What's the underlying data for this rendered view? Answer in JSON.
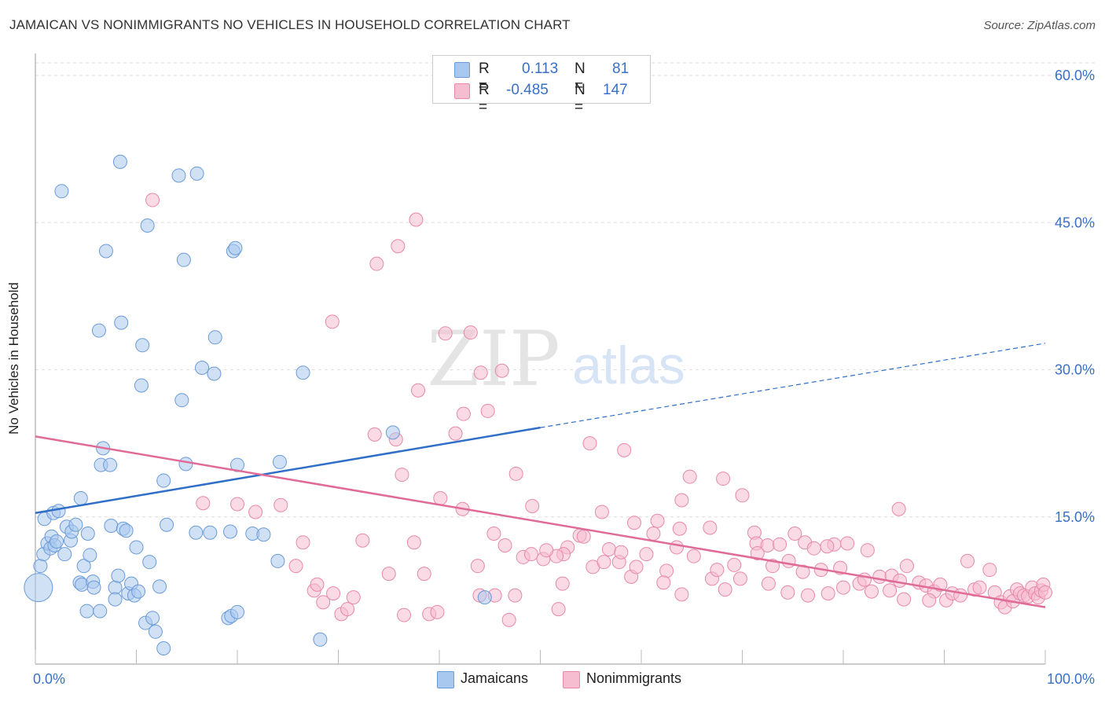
{
  "title": "JAMAICAN VS NONIMMIGRANTS NO VEHICLES IN HOUSEHOLD CORRELATION CHART",
  "source": "Source: ZipAtlas.com",
  "watermark": {
    "zip": "ZIP",
    "atlas": "atlas"
  },
  "legend": {
    "rows": [
      {
        "r_label": "R =",
        "r_value": "0.113",
        "n_label": "N =",
        "n_value": "81"
      },
      {
        "r_label": "R =",
        "r_value": "-0.485",
        "n_label": "N =",
        "n_value": "147"
      }
    ]
  },
  "bottom_legend": {
    "jamaicans": "Jamaicans",
    "nonimmigrants": "Nonimmigrants"
  },
  "colors": {
    "blue_fill": "#a9c8ef",
    "blue_stroke": "#6a9bd8",
    "blue_line": "#2f6fc8",
    "pink_fill": "#f6bcd0",
    "pink_stroke": "#e889a9",
    "pink_line": "#e06b97",
    "axis_label": "#3a6fc8",
    "grid": "#dddddd"
  },
  "chart_data": {
    "type": "scatter",
    "title": "JAMAICAN VS NONIMMIGRANTS NO VEHICLES IN HOUSEHOLD CORRELATION CHART",
    "xlabel": "",
    "ylabel": "No Vehicles in Household",
    "xlim": [
      0,
      100
    ],
    "ylim": [
      0,
      60
    ],
    "x_tick_labels": [
      "0.0%",
      "100.0%"
    ],
    "y_tick_labels": [
      "15.0%",
      "30.0%",
      "45.0%",
      "60.0%"
    ],
    "y_ticks": [
      15,
      30,
      45,
      60
    ],
    "grid": "horizontal dashed",
    "legend_placement": "top-center",
    "series": [
      {
        "name": "Jamaicans",
        "r": 0.113,
        "n": 81,
        "trend": {
          "x0": 0,
          "y0": 15.4,
          "x1": 50,
          "y1": 24.1,
          "dashed_to_x": 100,
          "dashed_to_y": 32.7
        },
        "points": [
          [
            0.3,
            7.8
          ],
          [
            0.5,
            10.0
          ],
          [
            0.8,
            11.2
          ],
          [
            0.9,
            14.8
          ],
          [
            1.2,
            12.3
          ],
          [
            1.5,
            11.8
          ],
          [
            1.6,
            13.0
          ],
          [
            1.9,
            12.1
          ],
          [
            2.1,
            12.5
          ],
          [
            1.8,
            15.4
          ],
          [
            2.3,
            15.6
          ],
          [
            2.6,
            48.2
          ],
          [
            2.9,
            11.2
          ],
          [
            3.1,
            14.0
          ],
          [
            3.5,
            12.6
          ],
          [
            3.6,
            13.5
          ],
          [
            4.0,
            14.2
          ],
          [
            4.4,
            8.3
          ],
          [
            4.6,
            8.1
          ],
          [
            4.5,
            16.9
          ],
          [
            4.8,
            10.0
          ],
          [
            5.1,
            5.4
          ],
          [
            5.2,
            13.3
          ],
          [
            5.4,
            11.1
          ],
          [
            5.7,
            8.4
          ],
          [
            5.8,
            7.8
          ],
          [
            6.4,
            5.4
          ],
          [
            6.3,
            34.0
          ],
          [
            6.5,
            20.3
          ],
          [
            6.7,
            22.0
          ],
          [
            7.0,
            42.1
          ],
          [
            7.4,
            20.3
          ],
          [
            7.5,
            14.1
          ],
          [
            7.9,
            7.8
          ],
          [
            7.9,
            6.6
          ],
          [
            8.2,
            9.0
          ],
          [
            8.4,
            51.2
          ],
          [
            8.5,
            34.8
          ],
          [
            8.7,
            13.8
          ],
          [
            9.0,
            13.6
          ],
          [
            9.2,
            7.2
          ],
          [
            9.5,
            8.2
          ],
          [
            9.8,
            7.0
          ],
          [
            10.0,
            11.9
          ],
          [
            10.2,
            7.4
          ],
          [
            10.5,
            28.4
          ],
          [
            10.6,
            32.5
          ],
          [
            10.9,
            4.2
          ],
          [
            11.3,
            10.4
          ],
          [
            11.1,
            44.7
          ],
          [
            11.6,
            4.7
          ],
          [
            11.9,
            3.3
          ],
          [
            12.3,
            7.9
          ],
          [
            12.7,
            1.6
          ],
          [
            12.7,
            18.7
          ],
          [
            13.0,
            14.2
          ],
          [
            14.2,
            49.8
          ],
          [
            14.5,
            26.9
          ],
          [
            14.7,
            41.2
          ],
          [
            14.9,
            20.4
          ],
          [
            15.9,
            13.4
          ],
          [
            16.0,
            50.0
          ],
          [
            16.5,
            30.2
          ],
          [
            17.3,
            13.4
          ],
          [
            17.7,
            29.6
          ],
          [
            17.8,
            33.3
          ],
          [
            19.1,
            4.7
          ],
          [
            19.3,
            13.5
          ],
          [
            19.4,
            4.9
          ],
          [
            19.6,
            42.1
          ],
          [
            19.8,
            42.4
          ],
          [
            20.0,
            20.3
          ],
          [
            20.0,
            5.3
          ],
          [
            21.5,
            13.3
          ],
          [
            22.6,
            13.2
          ],
          [
            24.0,
            10.5
          ],
          [
            24.2,
            20.6
          ],
          [
            26.5,
            29.7
          ],
          [
            28.2,
            2.5
          ],
          [
            35.4,
            23.6
          ],
          [
            44.5,
            6.8
          ]
        ]
      },
      {
        "name": "Nonimmigrants",
        "r": -0.485,
        "n": 147,
        "trend": {
          "x0": 0,
          "y0": 23.2,
          "x1": 100,
          "y1": 5.8
        },
        "points": [
          [
            11.6,
            47.3
          ],
          [
            37.7,
            45.3
          ],
          [
            33.8,
            40.8
          ],
          [
            35.9,
            42.6
          ],
          [
            29.4,
            34.9
          ],
          [
            40.6,
            33.7
          ],
          [
            43.1,
            33.8
          ],
          [
            44.1,
            29.7
          ],
          [
            46.2,
            29.9
          ],
          [
            37.9,
            27.9
          ],
          [
            42.4,
            25.5
          ],
          [
            44.8,
            25.8
          ],
          [
            33.6,
            23.4
          ],
          [
            35.7,
            22.9
          ],
          [
            41.6,
            23.5
          ],
          [
            54.9,
            22.5
          ],
          [
            58.3,
            21.8
          ],
          [
            36.3,
            19.3
          ],
          [
            47.6,
            19.4
          ],
          [
            64.8,
            19.1
          ],
          [
            68.1,
            18.9
          ],
          [
            70.0,
            17.2
          ],
          [
            40.1,
            16.9
          ],
          [
            64.0,
            16.7
          ],
          [
            20.0,
            16.3
          ],
          [
            24.3,
            16.2
          ],
          [
            21.8,
            15.5
          ],
          [
            49.2,
            16.1
          ],
          [
            42.3,
            15.8
          ],
          [
            56.1,
            15.5
          ],
          [
            59.3,
            14.4
          ],
          [
            61.6,
            14.6
          ],
          [
            63.8,
            13.8
          ],
          [
            66.8,
            13.9
          ],
          [
            61.2,
            13.3
          ],
          [
            71.2,
            13.4
          ],
          [
            75.2,
            13.3
          ],
          [
            79.1,
            12.2
          ],
          [
            85.5,
            15.8
          ],
          [
            76.2,
            12.4
          ],
          [
            71.4,
            12.3
          ],
          [
            72.5,
            12.1
          ],
          [
            73.7,
            12.2
          ],
          [
            77.1,
            11.8
          ],
          [
            78.4,
            12.0
          ],
          [
            80.4,
            12.3
          ],
          [
            82.4,
            11.6
          ],
          [
            53.9,
            13.1
          ],
          [
            54.3,
            13.0
          ],
          [
            52.7,
            11.9
          ],
          [
            52.3,
            11.2
          ],
          [
            51.6,
            11.0
          ],
          [
            50.3,
            10.7
          ],
          [
            45.4,
            13.3
          ],
          [
            46.5,
            12.1
          ],
          [
            56.8,
            11.7
          ],
          [
            57.8,
            10.4
          ],
          [
            60.5,
            11.2
          ],
          [
            62.5,
            9.5
          ],
          [
            63.5,
            11.9
          ],
          [
            65.2,
            11.0
          ],
          [
            67.0,
            8.7
          ],
          [
            67.5,
            9.6
          ],
          [
            69.2,
            10.1
          ],
          [
            71.5,
            11.3
          ],
          [
            73.0,
            10.0
          ],
          [
            74.6,
            10.5
          ],
          [
            76.0,
            9.4
          ],
          [
            77.8,
            9.6
          ],
          [
            79.7,
            9.8
          ],
          [
            81.6,
            8.2
          ],
          [
            82.1,
            8.6
          ],
          [
            83.6,
            8.9
          ],
          [
            84.8,
            9.0
          ],
          [
            85.6,
            8.5
          ],
          [
            86.3,
            10.0
          ],
          [
            87.5,
            8.3
          ],
          [
            88.2,
            8.0
          ],
          [
            89.0,
            7.4
          ],
          [
            89.6,
            8.1
          ],
          [
            90.2,
            6.5
          ],
          [
            90.8,
            7.2
          ],
          [
            91.6,
            7.0
          ],
          [
            92.3,
            10.5
          ],
          [
            93.0,
            7.6
          ],
          [
            93.5,
            7.8
          ],
          [
            94.5,
            9.6
          ],
          [
            95.0,
            7.3
          ],
          [
            95.6,
            6.3
          ],
          [
            96.0,
            5.8
          ],
          [
            96.5,
            6.9
          ],
          [
            96.8,
            6.4
          ],
          [
            97.2,
            7.6
          ],
          [
            97.5,
            7.2
          ],
          [
            97.9,
            7.0
          ],
          [
            98.3,
            6.9
          ],
          [
            98.7,
            7.8
          ],
          [
            99.0,
            7.2
          ],
          [
            99.3,
            6.8
          ],
          [
            99.6,
            7.5
          ],
          [
            99.8,
            8.1
          ],
          [
            100.0,
            7.3
          ],
          [
            16.6,
            16.4
          ],
          [
            25.8,
            10.0
          ],
          [
            26.5,
            12.4
          ],
          [
            27.6,
            7.5
          ],
          [
            27.9,
            8.1
          ],
          [
            28.5,
            6.3
          ],
          [
            29.5,
            7.2
          ],
          [
            30.3,
            5.1
          ],
          [
            30.9,
            5.6
          ],
          [
            31.5,
            6.8
          ],
          [
            32.4,
            12.6
          ],
          [
            35.0,
            9.2
          ],
          [
            36.5,
            5.0
          ],
          [
            37.5,
            12.4
          ],
          [
            38.5,
            9.2
          ],
          [
            39.0,
            5.1
          ],
          [
            39.8,
            5.3
          ],
          [
            43.8,
            10.0
          ],
          [
            44.0,
            7.0
          ],
          [
            45.5,
            7.0
          ],
          [
            46.9,
            4.5
          ],
          [
            47.5,
            7.0
          ],
          [
            48.3,
            10.9
          ],
          [
            49.1,
            11.2
          ],
          [
            50.6,
            11.6
          ],
          [
            51.8,
            5.6
          ],
          [
            52.2,
            8.2
          ],
          [
            55.2,
            9.9
          ],
          [
            56.3,
            10.4
          ],
          [
            58.0,
            11.4
          ],
          [
            59.0,
            8.9
          ],
          [
            59.5,
            9.9
          ],
          [
            62.2,
            8.3
          ],
          [
            64.0,
            7.1
          ],
          [
            68.3,
            7.6
          ],
          [
            69.8,
            8.7
          ],
          [
            72.6,
            8.2
          ],
          [
            74.5,
            7.3
          ],
          [
            76.5,
            7.0
          ],
          [
            78.5,
            7.2
          ],
          [
            80.0,
            7.8
          ],
          [
            82.8,
            7.4
          ],
          [
            84.6,
            7.5
          ],
          [
            86.0,
            6.6
          ],
          [
            88.5,
            6.5
          ]
        ]
      }
    ]
  }
}
